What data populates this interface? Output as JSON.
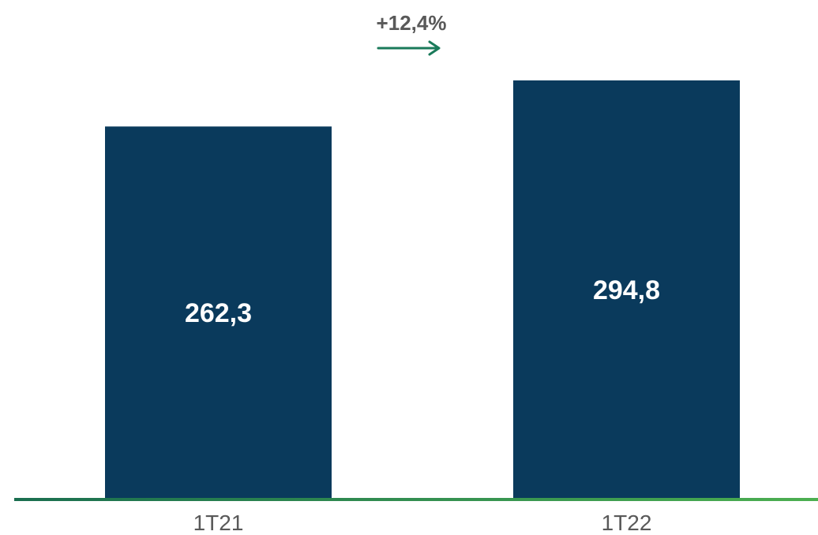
{
  "chart_data": {
    "type": "bar",
    "categories": [
      "1T21",
      "1T22"
    ],
    "values": [
      262.3,
      294.8
    ],
    "value_labels": [
      "262,3",
      "294,8"
    ],
    "ylim": [
      0,
      329.2
    ],
    "grid": false,
    "legend": "none",
    "annotation": {
      "text": "+12,4%",
      "type": "growth-arrow"
    },
    "colors": {
      "bar": "#0a3a5c",
      "bar_label": "#ffffff",
      "category_label": "#595959",
      "annotation_text": "#595959",
      "arrow": "#1a7a5a",
      "baseline_start": "#1a6e4f",
      "baseline_end": "#4caf50"
    }
  }
}
